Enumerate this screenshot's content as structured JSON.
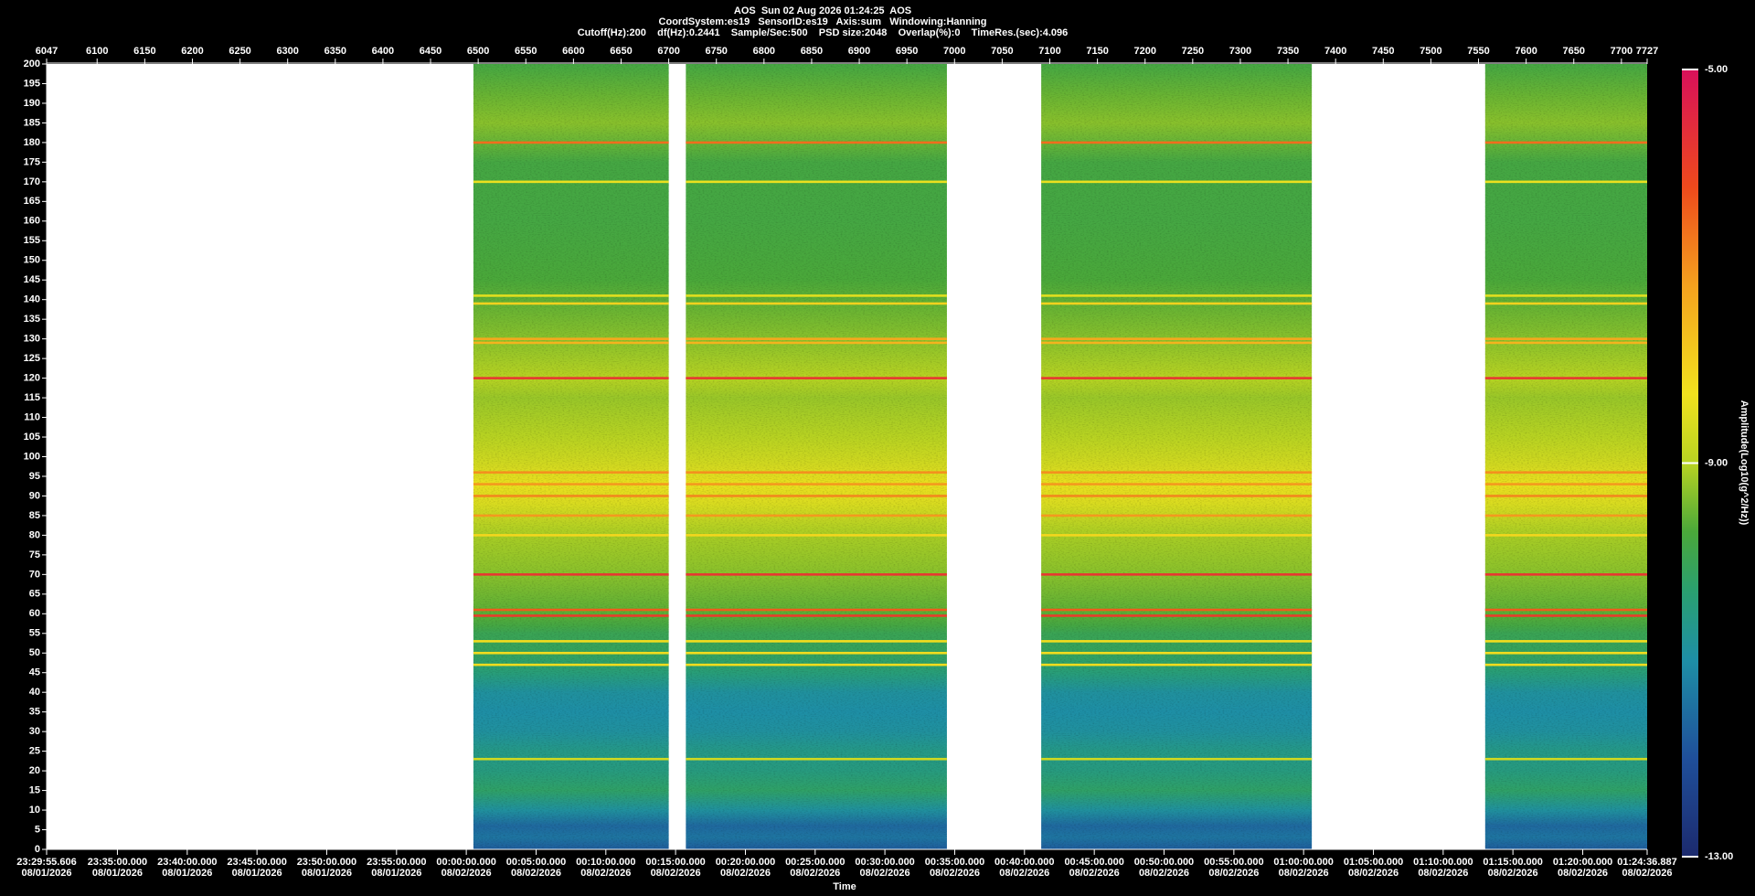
{
  "chart_data": {
    "type": "spectrogram",
    "title": "AOS  Sun 02 Aug 2026 01:24:25  AOS",
    "subtitle": [
      "CoordSystem:es19   SensorID:es19   Axis:sum   Windowing:Hanning",
      "Cutoff(Hz):200    df(Hz):0.2441    Sample/Sec:500    PSD size:2048    Overlap(%):0    TimeRes.(sec):4.096"
    ],
    "xlabel": "Time",
    "colorbar_label": "Amplitude(Log10(g^2/Hz))",
    "xlim": [
      6047,
      7727
    ],
    "xticks": [
      6047,
      6100,
      6150,
      6200,
      6250,
      6300,
      6350,
      6400,
      6450,
      6500,
      6550,
      6600,
      6650,
      6700,
      6750,
      6800,
      6850,
      6900,
      6950,
      7000,
      7050,
      7100,
      7150,
      7200,
      7250,
      7300,
      7350,
      7400,
      7450,
      7500,
      7550,
      7600,
      7650,
      7700,
      7727
    ],
    "ylim": [
      0,
      200
    ],
    "yticks": [
      0,
      5,
      10,
      15,
      20,
      25,
      30,
      35,
      40,
      45,
      50,
      55,
      60,
      65,
      70,
      75,
      80,
      85,
      90,
      95,
      100,
      105,
      110,
      115,
      120,
      125,
      130,
      135,
      140,
      145,
      150,
      155,
      160,
      165,
      170,
      175,
      180,
      185,
      190,
      195,
      200
    ],
    "x2ticks": [
      {
        "value": 6047,
        "label": "23:29:55.606"
      },
      {
        "value": 6121.3,
        "label": "23:35:00.000"
      },
      {
        "value": 6194.6,
        "label": "23:40:00.000"
      },
      {
        "value": 6267.8,
        "label": "23:45:00.000"
      },
      {
        "value": 6341.0,
        "label": "23:50:00.000"
      },
      {
        "value": 6414.3,
        "label": "23:55:00.000"
      },
      {
        "value": 6487.5,
        "label": "00:00:00.000"
      },
      {
        "value": 6560.8,
        "label": "00:05:00.000"
      },
      {
        "value": 6634.0,
        "label": "00:10:00.000"
      },
      {
        "value": 6707.2,
        "label": "00:15:00.000"
      },
      {
        "value": 6780.5,
        "label": "00:20:00.000"
      },
      {
        "value": 6853.7,
        "label": "00:25:00.000"
      },
      {
        "value": 6926.9,
        "label": "00:30:00.000"
      },
      {
        "value": 7000.2,
        "label": "00:35:00.000"
      },
      {
        "value": 7073.4,
        "label": "00:40:00.000"
      },
      {
        "value": 7146.7,
        "label": "00:45:00.000"
      },
      {
        "value": 7219.9,
        "label": "00:50:00.000"
      },
      {
        "value": 7293.2,
        "label": "00:55:00.000"
      },
      {
        "value": 7366.4,
        "label": "01:00:00.000"
      },
      {
        "value": 7439.7,
        "label": "01:05:00.000"
      },
      {
        "value": 7512.9,
        "label": "01:10:00.000"
      },
      {
        "value": 7586.1,
        "label": "01:15:00.000"
      },
      {
        "value": 7659.4,
        "label": "01:20:00.000"
      },
      {
        "value": 7727,
        "label": "01:24:36.887"
      }
    ],
    "x2tick_dates": [
      "08/01/2026",
      "08/01/2026",
      "08/01/2026",
      "08/01/2026",
      "08/01/2026",
      "08/01/2026",
      "08/02/2026",
      "08/02/2026",
      "08/02/2026",
      "08/02/2026",
      "08/02/2026",
      "08/02/2026",
      "08/02/2026",
      "08/02/2026",
      "08/02/2026",
      "08/02/2026",
      "08/02/2026",
      "08/02/2026",
      "08/02/2026",
      "08/02/2026",
      "08/02/2026",
      "08/02/2026",
      "08/02/2026",
      "08/02/2026"
    ],
    "segments": [
      [
        6495,
        6700
      ],
      [
        6718,
        6992
      ],
      [
        7091,
        7375
      ],
      [
        7557,
        7727
      ]
    ],
    "profile": {
      "freq": [
        0,
        3,
        6,
        10,
        15,
        20,
        25,
        30,
        35,
        40,
        45,
        50,
        55,
        57,
        60,
        70,
        80,
        88,
        93,
        98,
        105,
        115,
        120,
        130,
        145,
        160,
        175,
        185,
        192,
        200
      ],
      "amplitude": [
        -11.8,
        -11.4,
        -11.6,
        -10.9,
        -10.2,
        -10.5,
        -10.6,
        -10.9,
        -11.0,
        -10.9,
        -10.4,
        -10.1,
        -10.0,
        -9.8,
        -9.6,
        -9.3,
        -9.1,
        -8.6,
        -8.4,
        -8.7,
        -9.0,
        -9.2,
        -9.0,
        -9.3,
        -9.7,
        -9.8,
        -9.8,
        -9.3,
        -9.5,
        -9.8
      ]
    },
    "lines": [
      {
        "freq": 180,
        "amplitude": -6.6
      },
      {
        "freq": 170,
        "amplitude": -8.4
      },
      {
        "freq": 141,
        "amplitude": -8.5
      },
      {
        "freq": 139,
        "amplitude": -8.0
      },
      {
        "freq": 130,
        "amplitude": -7.3
      },
      {
        "freq": 129,
        "amplitude": -7.5
      },
      {
        "freq": 120,
        "amplitude": -5.8
      },
      {
        "freq": 96,
        "amplitude": -7.0
      },
      {
        "freq": 93,
        "amplitude": -7.1
      },
      {
        "freq": 90,
        "amplitude": -6.9
      },
      {
        "freq": 85,
        "amplitude": -7.1
      },
      {
        "freq": 80,
        "amplitude": -8.1
      },
      {
        "freq": 70,
        "amplitude": -5.8
      },
      {
        "freq": 61,
        "amplitude": -6.4
      },
      {
        "freq": 59.5,
        "amplitude": -5.9
      },
      {
        "freq": 53,
        "amplitude": -8.2
      },
      {
        "freq": 50,
        "amplitude": -8.2
      },
      {
        "freq": 47,
        "amplitude": -8.2
      },
      {
        "freq": 23,
        "amplitude": -8.7
      }
    ],
    "clim": [
      -13,
      -5
    ],
    "cticks": [
      {
        "value": -5,
        "label": "-5.00"
      },
      {
        "value": -9,
        "label": "-9.00"
      },
      {
        "value": -13,
        "label": "-13.00"
      }
    ],
    "colormap": [
      {
        "value": -13,
        "color": "#1c2a6e"
      },
      {
        "value": -12,
        "color": "#1f4f9a"
      },
      {
        "value": -11,
        "color": "#1e8fa6"
      },
      {
        "value": -10.3,
        "color": "#2aa070"
      },
      {
        "value": -9.7,
        "color": "#4aa83a"
      },
      {
        "value": -9.0,
        "color": "#b8d322"
      },
      {
        "value": -8.3,
        "color": "#f2e21e"
      },
      {
        "value": -7.2,
        "color": "#f5a21e"
      },
      {
        "value": -6.2,
        "color": "#ee4a1c"
      },
      {
        "value": -5,
        "color": "#d8105a"
      }
    ]
  }
}
